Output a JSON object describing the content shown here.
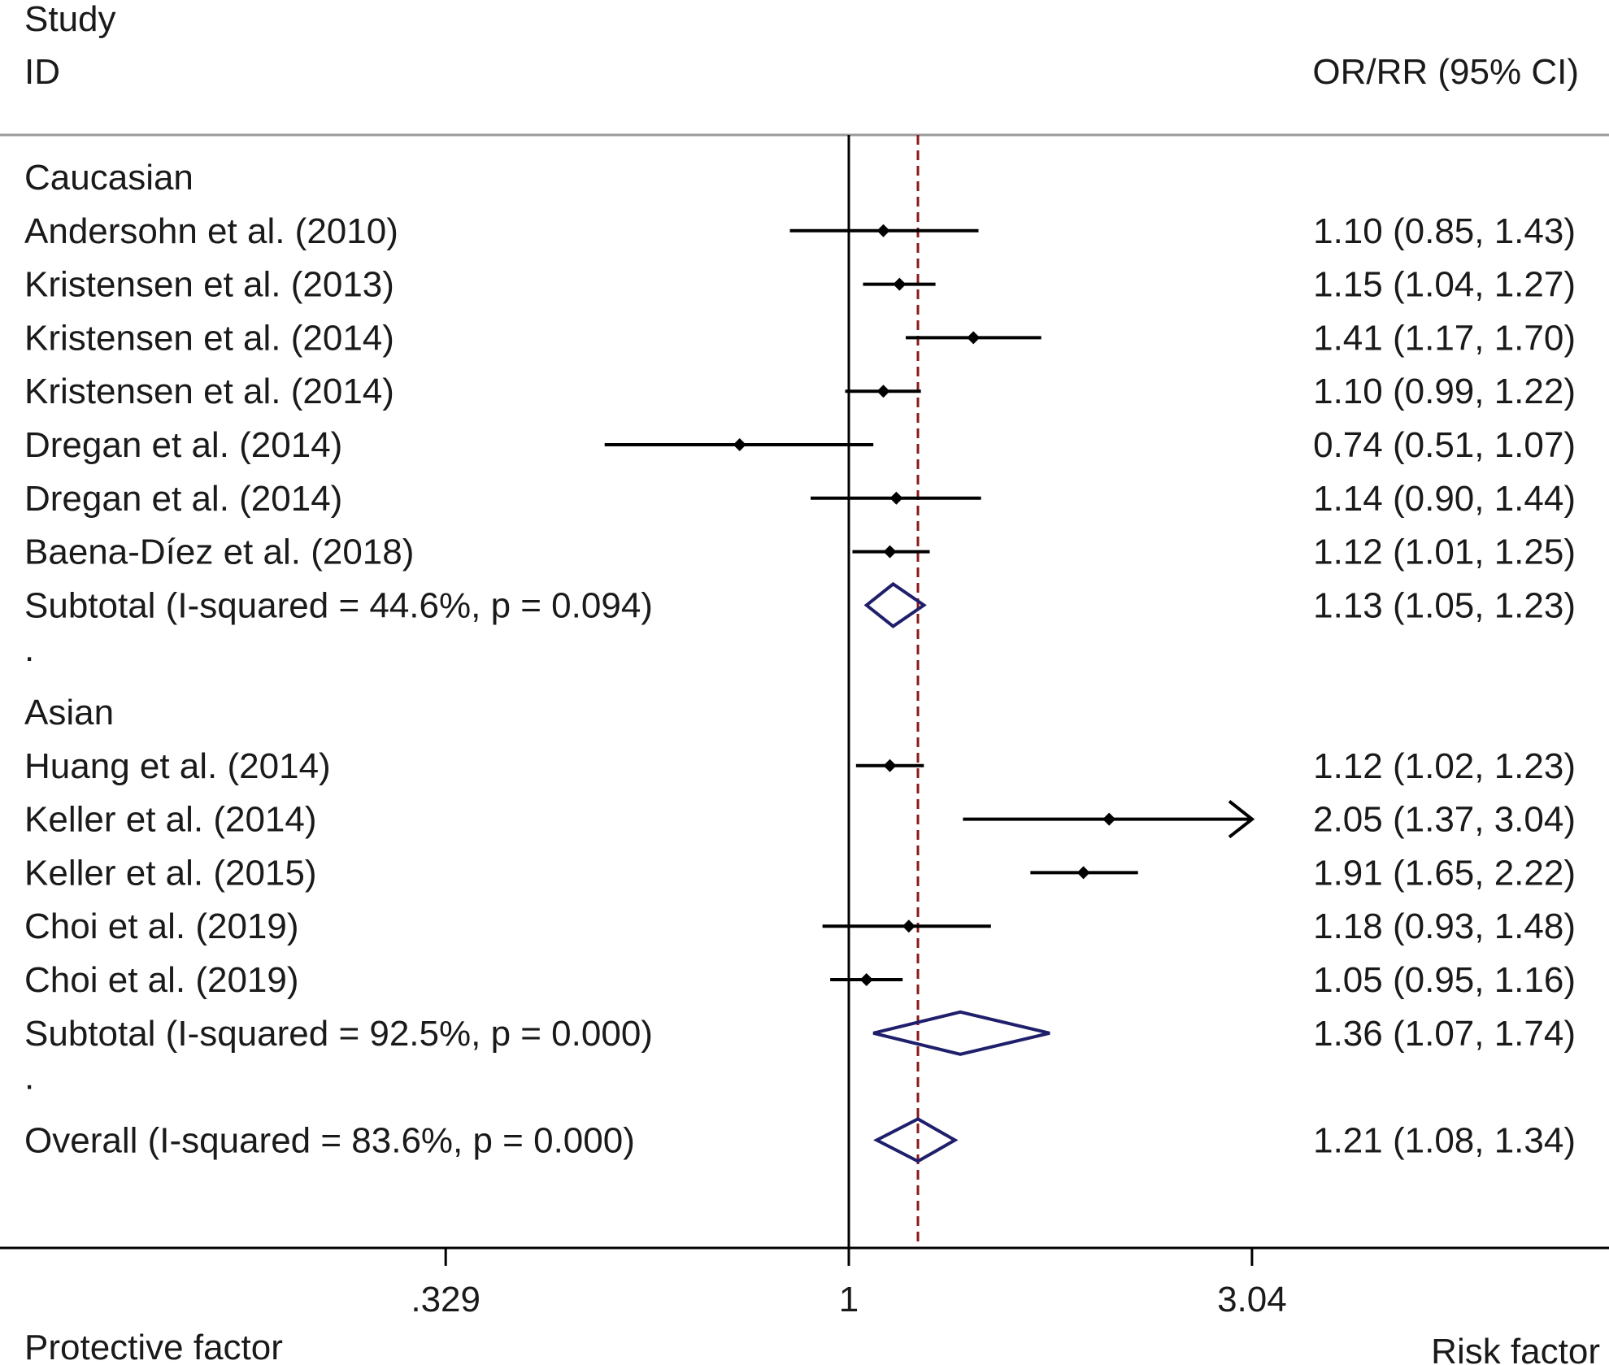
{
  "header": {
    "study_line1": "Study",
    "study_line2": "ID",
    "effect_col": "OR/RR (95% CI)"
  },
  "chart_data": {
    "type": "forest",
    "scale": "log",
    "x_ticks": [
      {
        "value": 0.329,
        "label": ".329"
      },
      {
        "value": 1,
        "label": "1"
      },
      {
        "value": 3.04,
        "label": "3.04"
      }
    ],
    "null_line": 1,
    "overall_line": 1.21,
    "rows": [
      {
        "kind": "group",
        "label": "Caucasian"
      },
      {
        "kind": "study",
        "label": "Andersohn et al. (2010)",
        "est": 1.1,
        "lo": 0.85,
        "hi": 1.43,
        "text": "1.10 (0.85, 1.43)"
      },
      {
        "kind": "study",
        "label": "Kristensen et al. (2013)",
        "est": 1.15,
        "lo": 1.04,
        "hi": 1.27,
        "text": "1.15 (1.04, 1.27)"
      },
      {
        "kind": "study",
        "label": "Kristensen et al. (2014)",
        "est": 1.41,
        "lo": 1.17,
        "hi": 1.7,
        "text": "1.41 (1.17, 1.70)"
      },
      {
        "kind": "study",
        "label": "Kristensen et al. (2014)",
        "est": 1.1,
        "lo": 0.99,
        "hi": 1.22,
        "text": "1.10 (0.99, 1.22)"
      },
      {
        "kind": "study",
        "label": "Dregan et al. (2014)",
        "est": 0.74,
        "lo": 0.51,
        "hi": 1.07,
        "text": "0.74 (0.51, 1.07)"
      },
      {
        "kind": "study",
        "label": "Dregan et al. (2014)",
        "est": 1.14,
        "lo": 0.9,
        "hi": 1.44,
        "text": "1.14 (0.90, 1.44)"
      },
      {
        "kind": "study",
        "label": "Baena-Díez et al. (2018)",
        "est": 1.12,
        "lo": 1.01,
        "hi": 1.25,
        "text": "1.12 (1.01, 1.25)"
      },
      {
        "kind": "subtotal",
        "label": "Subtotal  (I-squared = 44.6%, p = 0.094)",
        "est": 1.13,
        "lo": 1.05,
        "hi": 1.23,
        "text": "1.13 (1.05, 1.23)"
      },
      {
        "kind": "dot",
        "label": "."
      },
      {
        "kind": "group",
        "label": "Asian"
      },
      {
        "kind": "study",
        "label": "Huang et al. (2014)",
        "est": 1.12,
        "lo": 1.02,
        "hi": 1.23,
        "text": "1.12 (1.02, 1.23)"
      },
      {
        "kind": "study",
        "label": "Keller et al. (2014)",
        "est": 2.05,
        "lo": 1.37,
        "hi": 3.04,
        "text": "2.05 (1.37, 3.04)",
        "arrow_right": true
      },
      {
        "kind": "study",
        "label": "Keller et al. (2015)",
        "est": 1.91,
        "lo": 1.65,
        "hi": 2.22,
        "text": "1.91 (1.65, 2.22)"
      },
      {
        "kind": "study",
        "label": "Choi et al. (2019)",
        "est": 1.18,
        "lo": 0.93,
        "hi": 1.48,
        "text": "1.18 (0.93, 1.48)"
      },
      {
        "kind": "study",
        "label": "Choi et al. (2019)",
        "est": 1.05,
        "lo": 0.95,
        "hi": 1.16,
        "text": "1.05 (0.95, 1.16)"
      },
      {
        "kind": "subtotal",
        "label": "Subtotal  (I-squared = 92.5%, p = 0.000)",
        "est": 1.36,
        "lo": 1.07,
        "hi": 1.74,
        "text": "1.36 (1.07, 1.74)"
      },
      {
        "kind": "dot",
        "label": "."
      },
      {
        "kind": "overall",
        "label": "Overall  (I-squared = 83.6%, p = 0.000)",
        "est": 1.21,
        "lo": 1.08,
        "hi": 1.34,
        "text": "1.21 (1.08, 1.34)"
      }
    ],
    "xlabel_left": "Protective factor",
    "xlabel_right": "Risk factor",
    "colors": {
      "diamond": "#1f1f6b",
      "overall_line": "#8b1a1a",
      "marks": "#000000"
    }
  }
}
